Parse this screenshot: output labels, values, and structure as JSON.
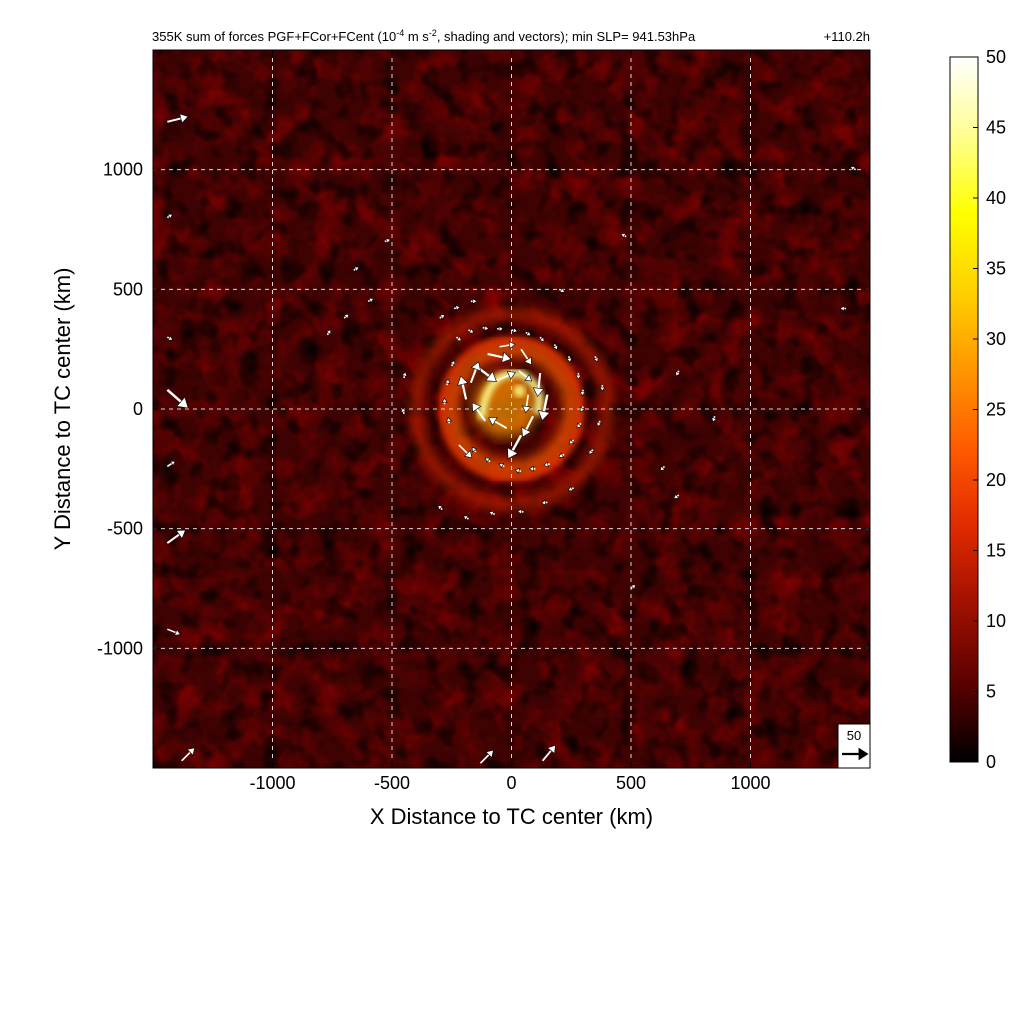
{
  "chart_data": {
    "type": "heatmap",
    "title": "355K sum of forces PGF+FCor+FCent (10",
    "title_superscript": "-4",
    "title_unit_mid": " m s",
    "title_unit_sup": "-2",
    "title_rest": ", shading and vectors); min SLP= 941.53hPa",
    "time_label": "+110.2h",
    "xlabel": "X Distance to TC center (km)",
    "ylabel": "Y Distance to TC center (km)",
    "xlim": [
      -1500,
      1500
    ],
    "ylim": [
      -1500,
      1500
    ],
    "x_ticks": [
      -1000,
      -500,
      0,
      500,
      1000
    ],
    "x_tick_labels": [
      "-1000",
      "-500",
      "0",
      "500",
      "1000"
    ],
    "y_ticks": [
      -1000,
      -500,
      0,
      500,
      1000
    ],
    "y_tick_labels": [
      "-1000",
      "-500",
      "0",
      "500",
      "1000"
    ],
    "grid": true,
    "colorbar": {
      "min": 0,
      "max": 50,
      "ticks": [
        0,
        5,
        10,
        15,
        20,
        25,
        30,
        35,
        40,
        45,
        50
      ],
      "tick_labels": [
        "0",
        "5",
        "10",
        "15",
        "20",
        "25",
        "30",
        "35",
        "40",
        "45",
        "50"
      ],
      "colormap": [
        "#000000",
        "#5a0000",
        "#a01000",
        "#e02a00",
        "#ff5a00",
        "#ff9600",
        "#ffd000",
        "#ffff00",
        "#ffff90",
        "#ffffff"
      ]
    },
    "reference_vector": {
      "value": 50,
      "label": "50"
    },
    "colors": {
      "arrow": "#ffffff",
      "frame": "#000000",
      "grid": "#d8d8d8"
    },
    "field_features": {
      "eyewall_max_radius_km": 250,
      "inner_core_peak_value": 45,
      "spiral_band_radius_km": 400,
      "background_value": 7
    },
    "vectors": [
      {
        "x": -150,
        "y": 180,
        "u": 40,
        "v": -30
      },
      {
        "x": -100,
        "y": 230,
        "u": 45,
        "v": -10
      },
      {
        "x": -50,
        "y": 260,
        "u": 30,
        "v": 5
      },
      {
        "x": 40,
        "y": 250,
        "u": 20,
        "v": -30
      },
      {
        "x": 120,
        "y": 150,
        "u": -5,
        "v": -45
      },
      {
        "x": 150,
        "y": 60,
        "u": -10,
        "v": -50
      },
      {
        "x": 90,
        "y": -30,
        "u": -20,
        "v": -40
      },
      {
        "x": 40,
        "y": -110,
        "u": -25,
        "v": -45
      },
      {
        "x": -20,
        "y": -80,
        "u": -35,
        "v": 20
      },
      {
        "x": -110,
        "y": -50,
        "u": -25,
        "v": 35
      },
      {
        "x": -190,
        "y": 40,
        "u": -10,
        "v": 45
      },
      {
        "x": -170,
        "y": 110,
        "u": 15,
        "v": 40
      },
      {
        "x": -60,
        "y": 120,
        "u": 35,
        "v": 15
      },
      {
        "x": 30,
        "y": 160,
        "u": 25,
        "v": -20
      },
      {
        "x": 70,
        "y": 60,
        "u": -5,
        "v": -35
      },
      {
        "x": -220,
        "y": -150,
        "u": 25,
        "v": -25
      },
      {
        "x": -230,
        "y": 300,
        "u": 8,
        "v": -6
      },
      {
        "x": -180,
        "y": 330,
        "u": 8,
        "v": -4
      },
      {
        "x": -120,
        "y": 340,
        "u": 9,
        "v": -2
      },
      {
        "x": -60,
        "y": 335,
        "u": 9,
        "v": 0
      },
      {
        "x": 0,
        "y": 330,
        "u": 9,
        "v": -2
      },
      {
        "x": 60,
        "y": 320,
        "u": 8,
        "v": -5
      },
      {
        "x": 120,
        "y": 300,
        "u": 6,
        "v": -7
      },
      {
        "x": 180,
        "y": 270,
        "u": 4,
        "v": -8
      },
      {
        "x": 240,
        "y": 220,
        "u": 2,
        "v": -9
      },
      {
        "x": 280,
        "y": 150,
        "u": 0,
        "v": -9
      },
      {
        "x": 300,
        "y": 80,
        "u": -2,
        "v": -9
      },
      {
        "x": 300,
        "y": 10,
        "u": -4,
        "v": -8
      },
      {
        "x": 290,
        "y": -60,
        "u": -6,
        "v": -7
      },
      {
        "x": 260,
        "y": -130,
        "u": -7,
        "v": -6
      },
      {
        "x": 220,
        "y": -190,
        "u": -8,
        "v": -4
      },
      {
        "x": 160,
        "y": -230,
        "u": -9,
        "v": -2
      },
      {
        "x": 100,
        "y": -250,
        "u": -9,
        "v": 0
      },
      {
        "x": 40,
        "y": -260,
        "u": -9,
        "v": 2
      },
      {
        "x": -30,
        "y": -240,
        "u": -8,
        "v": 4
      },
      {
        "x": -90,
        "y": -220,
        "u": -7,
        "v": 6
      },
      {
        "x": -150,
        "y": -180,
        "u": -5,
        "v": 7
      },
      {
        "x": -260,
        "y": -60,
        "u": -2,
        "v": 9
      },
      {
        "x": -280,
        "y": 20,
        "u": 0,
        "v": 9
      },
      {
        "x": -270,
        "y": 100,
        "u": 2,
        "v": 9
      },
      {
        "x": -250,
        "y": 180,
        "u": 4,
        "v": 8
      },
      {
        "x": -300,
        "y": 380,
        "u": 6,
        "v": 4
      },
      {
        "x": -240,
        "y": 420,
        "u": 7,
        "v": 2
      },
      {
        "x": -170,
        "y": 450,
        "u": 8,
        "v": 0
      },
      {
        "x": 200,
        "y": 500,
        "u": 6,
        "v": -3
      },
      {
        "x": 350,
        "y": 220,
        "u": 3,
        "v": -7
      },
      {
        "x": 380,
        "y": 100,
        "u": 0,
        "v": -8
      },
      {
        "x": 370,
        "y": -50,
        "u": -3,
        "v": -7
      },
      {
        "x": 340,
        "y": -170,
        "u": -5,
        "v": -6
      },
      {
        "x": 260,
        "y": -330,
        "u": -7,
        "v": -3
      },
      {
        "x": 150,
        "y": -390,
        "u": -8,
        "v": -1
      },
      {
        "x": 50,
        "y": -430,
        "u": -8,
        "v": 1
      },
      {
        "x": -70,
        "y": -440,
        "u": -7,
        "v": 3
      },
      {
        "x": -180,
        "y": -460,
        "u": -6,
        "v": 4
      },
      {
        "x": -290,
        "y": -420,
        "u": -5,
        "v": 5
      },
      {
        "x": -450,
        "y": -20,
        "u": -2,
        "v": 8
      },
      {
        "x": -450,
        "y": 130,
        "u": 2,
        "v": 8
      },
      {
        "x": -600,
        "y": 450,
        "u": 6,
        "v": 3
      },
      {
        "x": -700,
        "y": 380,
        "u": 5,
        "v": 4
      },
      {
        "x": -770,
        "y": 310,
        "u": 3,
        "v": 5
      },
      {
        "x": -530,
        "y": 700,
        "u": 6,
        "v": 2
      },
      {
        "x": -660,
        "y": 580,
        "u": 5,
        "v": 3
      },
      {
        "x": 480,
        "y": 720,
        "u": -5,
        "v": 3
      },
      {
        "x": 700,
        "y": 160,
        "u": -3,
        "v": -6
      },
      {
        "x": 850,
        "y": -30,
        "u": -2,
        "v": -7
      },
      {
        "x": 640,
        "y": -240,
        "u": -5,
        "v": -5
      },
      {
        "x": 700,
        "y": -360,
        "u": -6,
        "v": -4
      },
      {
        "x": 500,
        "y": -750,
        "u": 5,
        "v": 4
      },
      {
        "x": -1440,
        "y": 1200,
        "u": 40,
        "v": 10
      },
      {
        "x": -1440,
        "y": 80,
        "u": 40,
        "v": -35
      },
      {
        "x": -1440,
        "y": -560,
        "u": 35,
        "v": 25
      },
      {
        "x": -1440,
        "y": -920,
        "u": 25,
        "v": -10
      },
      {
        "x": -1440,
        "y": -240,
        "u": 15,
        "v": 10
      },
      {
        "x": -1440,
        "y": 300,
        "u": 10,
        "v": -5
      },
      {
        "x": -1440,
        "y": 800,
        "u": 8,
        "v": 5
      },
      {
        "x": -1380,
        "y": -1470,
        "u": 25,
        "v": 25
      },
      {
        "x": 130,
        "y": -1470,
        "u": 25,
        "v": 30
      },
      {
        "x": -130,
        "y": -1480,
        "u": 25,
        "v": 25
      },
      {
        "x": 1400,
        "y": 420,
        "u": -8,
        "v": 0
      },
      {
        "x": 1440,
        "y": 1000,
        "u": -5,
        "v": 3
      }
    ]
  }
}
